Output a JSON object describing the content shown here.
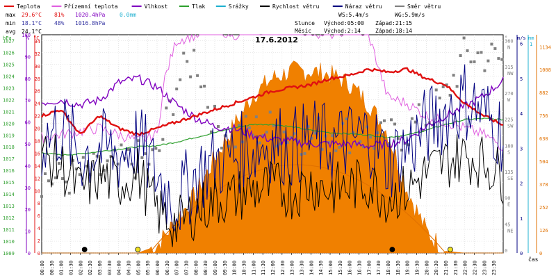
{
  "chart_data": {
    "type": "line",
    "title": "17.6.2012",
    "legend": [
      {
        "label": "Teplota",
        "color": "#e01010"
      },
      {
        "label": "Přízemní teplota",
        "color": "#e060e0"
      },
      {
        "label": "Vlhkost",
        "color": "#8000c0"
      },
      {
        "label": "Tlak",
        "color": "#30a030"
      },
      {
        "label": "Srážky",
        "color": "#20b0d0"
      },
      {
        "label": "Rychlost větru",
        "color": "#000000"
      },
      {
        "label": "Náraz větru",
        "color": "#000080"
      },
      {
        "label": "Směr větru",
        "color": "#808080"
      }
    ],
    "stats": {
      "max_label": "max",
      "min_label": "min",
      "avg_label": "avg",
      "max_temp": "29.6°C",
      "max_hum": "81%",
      "max_press": "1020.4hPa",
      "rain_total": "0.0mm",
      "min_temp": "18.1°C",
      "min_hum": "48%",
      "min_press": "1016.8hPa",
      "avg_temp": "24.1°C"
    },
    "wind_info": {
      "ws": "WS:5.4m/s",
      "wg": "WG:5.9m/s",
      "sun_label": "Slunce",
      "sun_rise": "Východ:05:00",
      "sun_set": "Západ:21:15",
      "moon_label": "Měsíc",
      "moon_rise": "Východ:2:14",
      "moon_set": "Západ:18:14"
    },
    "axes": {
      "hpa_unit": "hPa",
      "pct_unit": "%",
      "deg_unit": "°C",
      "dir_unit": "°",
      "ms_unit": "m/s",
      "mm_unit": "mm",
      "sun_unit": "W/m2",
      "x_label": "čas",
      "hpa_ticks": [
        "1027",
        "1026",
        "1025",
        "1024",
        "1023",
        "1022",
        "1021",
        "1020",
        "1019",
        "1018",
        "1017",
        "1016",
        "1015",
        "1014",
        "1013",
        "1012",
        "1011",
        "1010",
        "1009"
      ],
      "pct_ticks": [
        "100",
        "90",
        "80",
        "70",
        "60",
        "50",
        "40",
        "30",
        "20",
        "10",
        "0"
      ],
      "temp_ticks": [
        "34",
        "32",
        "30",
        "28",
        "26",
        "24",
        "22",
        "20",
        "18",
        "16",
        "14",
        "12",
        "10",
        "8",
        "6",
        "4",
        "2",
        "0"
      ],
      "dir_ticks": [
        {
          "deg": "360",
          "dir": "N"
        },
        {
          "deg": "315",
          "dir": "NW"
        },
        {
          "deg": "270",
          "dir": "W"
        },
        {
          "deg": "225",
          "dir": "SW"
        },
        {
          "deg": "180",
          "dir": "S"
        },
        {
          "deg": "135",
          "dir": "SE"
        },
        {
          "deg": "90",
          "dir": "E"
        },
        {
          "deg": "45",
          "dir": "NE"
        },
        {
          "deg": "0",
          "dir": ""
        }
      ],
      "ms_ticks": [
        "6",
        "5",
        "4",
        "3",
        "2",
        "1",
        "0"
      ],
      "mm_ticks": [
        "1"
      ],
      "sun_ticks": [
        "1134",
        "1008",
        "882",
        "756",
        "630",
        "504",
        "378",
        "252",
        "126",
        "0"
      ],
      "time_ticks": [
        "00:00",
        "00:30",
        "01:00",
        "01:30",
        "02:00",
        "02:30",
        "03:00",
        "03:30",
        "04:00",
        "04:30",
        "05:00",
        "05:30",
        "06:00",
        "06:30",
        "07:00",
        "07:30",
        "08:00",
        "08:30",
        "09:00",
        "09:30",
        "10:00",
        "10:30",
        "11:00",
        "11:30",
        "12:00",
        "12:30",
        "13:00",
        "13:30",
        "14:00",
        "14:30",
        "15:00",
        "15:30",
        "16:00",
        "16:30",
        "17:00",
        "17:30",
        "18:00",
        "18:30",
        "19:00",
        "19:30",
        "20:00",
        "20:30",
        "21:00",
        "21:30",
        "22:00",
        "22:30",
        "23:00",
        "23:30"
      ],
      "temp_range": [
        0,
        35
      ],
      "hpa_range": [
        1009,
        1027.5
      ],
      "pct_range": [
        0,
        100
      ],
      "dir_range": [
        0,
        375
      ],
      "ms_range": [
        0,
        6.25
      ],
      "sun_range": [
        0,
        1200
      ]
    },
    "series": [
      {
        "name": "Teplota",
        "unit": "°C",
        "t": [
          0,
          1,
          2,
          3,
          4,
          5,
          6,
          7,
          8,
          9,
          10,
          11,
          12,
          13,
          14,
          15,
          16,
          17,
          18,
          19,
          20,
          21,
          22,
          23,
          24
        ],
        "values": [
          22,
          23,
          19,
          22,
          20,
          19,
          20,
          21,
          22,
          23,
          24,
          25,
          26,
          26.5,
          27,
          28,
          28.5,
          29.5,
          29,
          29.5,
          28,
          27,
          24,
          22,
          20.5
        ]
      },
      {
        "name": "Přízemní teplota",
        "unit": "°C",
        "t": [
          0,
          1,
          2,
          3,
          4,
          5,
          6,
          6.4,
          7,
          8,
          9,
          10,
          11,
          12,
          13,
          14,
          15,
          16,
          17,
          18,
          19,
          20,
          21,
          22,
          23,
          24
        ],
        "values": [
          18.5,
          19,
          19.5,
          20,
          19,
          18,
          19,
          28,
          34,
          35,
          36,
          35,
          35.5,
          36,
          36,
          35.5,
          35,
          36,
          35,
          25,
          24,
          22,
          21,
          20,
          19,
          17
        ]
      },
      {
        "name": "Vlhkost",
        "unit": "%",
        "t": [
          0,
          1,
          2,
          3,
          4,
          5,
          6,
          7,
          8,
          9,
          10,
          11,
          12,
          13,
          14,
          15,
          16,
          17,
          18,
          19,
          20,
          21,
          22,
          23,
          24
        ],
        "values": [
          69,
          70,
          68,
          70,
          78,
          80,
          76,
          68,
          62,
          58,
          57,
          54,
          52,
          51,
          50,
          50,
          50,
          49,
          50,
          52,
          58,
          63,
          67,
          72,
          79
        ]
      },
      {
        "name": "Tlak",
        "unit": "hPa",
        "t": [
          0,
          1,
          2,
          3,
          4,
          5,
          6,
          7,
          8,
          9,
          10,
          11,
          12,
          13,
          14,
          15,
          16,
          17,
          18,
          19,
          20,
          21,
          22,
          23,
          24
        ],
        "values": [
          1017.5,
          1017.3,
          1017.4,
          1017.6,
          1017.8,
          1018,
          1018.1,
          1018.4,
          1018.8,
          1019.2,
          1019.6,
          1019.9,
          1019.9,
          1019.7,
          1019.4,
          1019.2,
          1019.1,
          1019,
          1018.8,
          1019,
          1019.4,
          1019.9,
          1020.3,
          1020.4,
          1020.3
        ]
      },
      {
        "name": "Rychlost větru",
        "unit": "m/s",
        "t": [
          0,
          1,
          2,
          3,
          4,
          5,
          6,
          7,
          8,
          9,
          10,
          11,
          12,
          13,
          14,
          15,
          16,
          17,
          18,
          19,
          20,
          21,
          22,
          23,
          24
        ],
        "values": [
          2.8,
          2.5,
          1.8,
          2.2,
          2,
          2.3,
          1.2,
          0.8,
          1.2,
          1.5,
          1.6,
          1.8,
          1.9,
          1.7,
          2,
          1.8,
          1.9,
          2,
          1.6,
          1.8,
          2.3,
          2.6,
          2.8,
          2.6,
          2.2
        ]
      },
      {
        "name": "Náraz větru",
        "unit": "m/s",
        "t": [
          0,
          1,
          2,
          3,
          4,
          5,
          6,
          7,
          8,
          9,
          10,
          11,
          12,
          13,
          14,
          15,
          16,
          17,
          18,
          19,
          20,
          21,
          22,
          23,
          24
        ],
        "values": [
          3.2,
          3.6,
          2.8,
          3,
          2.8,
          3.2,
          2.2,
          1.4,
          2.2,
          2.6,
          2.8,
          3,
          3.2,
          3,
          3.3,
          3.1,
          3.2,
          3.4,
          2.6,
          3,
          3.6,
          4,
          4.4,
          4,
          3.4
        ]
      },
      {
        "name": "Směr větru",
        "unit": "°",
        "t": [
          0,
          1,
          2,
          3,
          4,
          5,
          6,
          7,
          8,
          9,
          10,
          11,
          12,
          13,
          14,
          15,
          16,
          17,
          18,
          19,
          20,
          21,
          22,
          23,
          24
        ],
        "values": [
          130,
          125,
          135,
          140,
          150,
          160,
          160,
          290,
          340,
          220,
          200,
          210,
          215,
          205,
          200,
          210,
          205,
          200,
          195,
          210,
          230,
          270,
          340,
          340,
          330
        ]
      },
      {
        "name": "Sluneční záření",
        "unit": "W/m2",
        "t": [
          0,
          5,
          6,
          7,
          8,
          9,
          10,
          11,
          12,
          13,
          14,
          15,
          16,
          17,
          18,
          19,
          20,
          21,
          22,
          23,
          24
        ],
        "values": [
          0,
          0,
          40,
          180,
          320,
          520,
          700,
          870,
          960,
          1000,
          1000,
          980,
          930,
          820,
          660,
          350,
          120,
          10,
          0,
          0,
          0
        ]
      }
    ],
    "markers": {
      "sunrise_hour": 5.0,
      "sunset_hour": 21.25,
      "moonrise_hour": 2.23,
      "moonset_hour": 18.23
    }
  }
}
